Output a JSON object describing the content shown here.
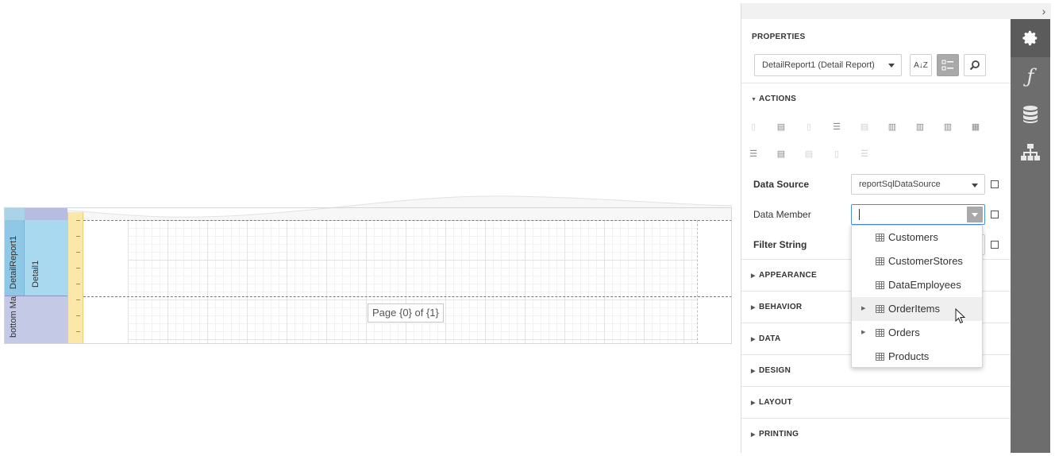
{
  "designer": {
    "bands": {
      "detail_report": "DetailReport1",
      "detail": "Detail1",
      "bottom_margin": "bottom Ma"
    },
    "page_info_text": "Page {0} of {1}"
  },
  "panel": {
    "collapse_icon": "chevron-right-icon",
    "title": "PROPERTIES",
    "component_select": "DetailReport1 (Detail Report)",
    "buttons": {
      "sort_label": "A↓Z",
      "categories_icon": "categories-icon",
      "search_icon": "search-icon"
    },
    "sections": {
      "actions": "ACTIONS",
      "appearance": "APPEARANCE",
      "behavior": "BEHAVIOR",
      "data": "DATA",
      "design": "DESIGN",
      "layout": "LAYOUT",
      "printing": "PRINTING"
    },
    "properties": {
      "data_source_label": "Data Source",
      "data_source_value": "reportSqlDataSource",
      "data_member_label": "Data Member",
      "data_member_value": "",
      "filter_string_label": "Filter String"
    },
    "data_member_options": [
      {
        "label": "Customers",
        "expandable": false
      },
      {
        "label": "CustomerStores",
        "expandable": false
      },
      {
        "label": "DataEmployees",
        "expandable": false
      },
      {
        "label": "OrderItems",
        "expandable": true
      },
      {
        "label": "Orders",
        "expandable": true
      },
      {
        "label": "Products",
        "expandable": false
      }
    ],
    "hovered_option": "OrderItems"
  },
  "tabs": [
    {
      "name": "properties",
      "icon": "gear-icon",
      "active": true
    },
    {
      "name": "expressions",
      "icon": "function-icon",
      "active": false
    },
    {
      "name": "field-list",
      "icon": "database-icon",
      "active": false
    },
    {
      "name": "report-explorer",
      "icon": "hierarchy-icon",
      "active": false
    }
  ]
}
